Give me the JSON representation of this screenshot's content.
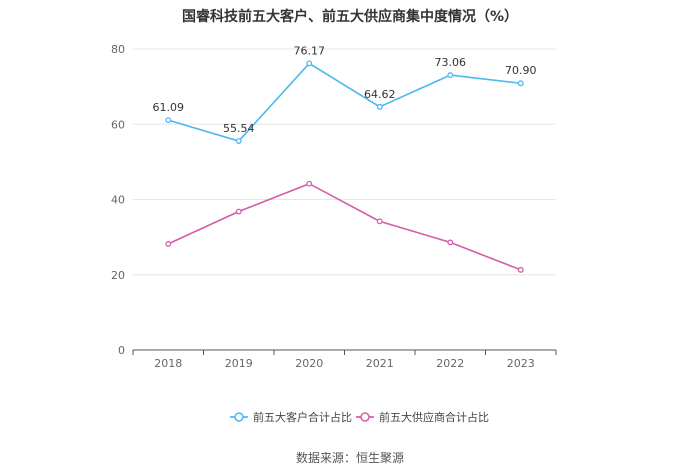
{
  "chart_data": {
    "type": "line",
    "title": "国睿科技前五大客户、前五大供应商集中度情况（%）",
    "xlabel": "",
    "ylabel": "",
    "categories": [
      "2018",
      "2019",
      "2020",
      "2021",
      "2022",
      "2023"
    ],
    "ylim": [
      0,
      80
    ],
    "yticks": [
      0,
      20,
      40,
      60,
      80
    ],
    "grid": true,
    "legend_position": "bottom",
    "series": [
      {
        "name": "前五大客户合计占比",
        "values": [
          61.09,
          55.54,
          76.17,
          64.62,
          73.06,
          70.9
        ],
        "labels": [
          "61.09",
          "55.54",
          "76.17",
          "64.62",
          "73.06",
          "70.90"
        ],
        "color": "#4db8f0",
        "show_labels": true
      },
      {
        "name": "前五大供应商合计占比",
        "values": [
          28.2,
          36.8,
          44.2,
          34.2,
          28.6,
          21.3
        ],
        "color": "#d45ca8",
        "show_labels": false
      }
    ]
  },
  "source": "数据来源：恒生聚源"
}
